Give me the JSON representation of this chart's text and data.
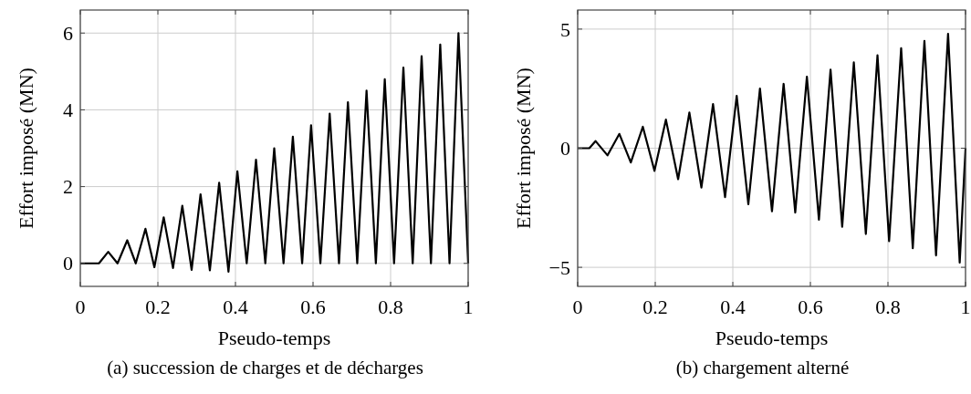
{
  "chart_data": [
    {
      "type": "line",
      "xlabel": "Pseudo-temps",
      "ylabel": "Effort imposé (MN)",
      "annotations": [
        "(a) succession de charges et de décharges"
      ],
      "xlim": [
        0,
        1
      ],
      "ylim": [
        -0.6,
        6.6
      ],
      "xticks": [
        0,
        0.2,
        0.4,
        0.6,
        0.8,
        1
      ],
      "yticks": [
        0,
        2,
        4,
        6
      ],
      "grid": true,
      "marker": "none",
      "line_style": "solid",
      "series": [
        {
          "color": "#000000",
          "x": [
            0,
            0.048,
            0.072,
            0.096,
            0.121,
            0.143,
            0.168,
            0.191,
            0.215,
            0.239,
            0.263,
            0.287,
            0.31,
            0.334,
            0.358,
            0.382,
            0.405,
            0.429,
            0.453,
            0.477,
            0.5,
            0.524,
            0.548,
            0.572,
            0.595,
            0.619,
            0.643,
            0.667,
            0.69,
            0.714,
            0.738,
            0.762,
            0.785,
            0.809,
            0.833,
            0.857,
            0.88,
            0.904,
            0.928,
            0.952,
            0.975,
            1
          ],
          "values": [
            0,
            0,
            0.3,
            0,
            0.6,
            0,
            0.9,
            -0.1,
            1.2,
            -0.12,
            1.5,
            -0.17,
            1.8,
            -0.18,
            2.1,
            -0.22,
            2.4,
            0,
            2.7,
            0,
            3,
            0,
            3.3,
            0,
            3.6,
            0,
            3.9,
            0,
            4.2,
            0,
            4.5,
            0,
            4.8,
            0,
            5.1,
            0,
            5.4,
            0,
            5.7,
            0,
            6,
            0
          ]
        }
      ]
    },
    {
      "type": "line",
      "xlabel": "Pseudo-temps",
      "ylabel": "Effort imposé (MN)",
      "annotations": [
        "(b) chargement alterné"
      ],
      "xlim": [
        0,
        1
      ],
      "ylim": [
        -5.8,
        5.8
      ],
      "xticks": [
        0,
        0.2,
        0.4,
        0.6,
        0.8,
        1
      ],
      "yticks": [
        {
          "value": -5,
          "label": "−5"
        },
        0,
        5
      ],
      "grid": true,
      "marker": "none",
      "line_style": "solid",
      "series": [
        {
          "color": "#000000",
          "x": [
            0,
            0.03,
            0.046,
            0.077,
            0.1075,
            0.137,
            0.168,
            0.198,
            0.2275,
            0.259,
            0.288,
            0.319,
            0.349,
            0.38,
            0.41,
            0.44,
            0.47,
            0.501,
            0.531,
            0.561,
            0.591,
            0.622,
            0.652,
            0.682,
            0.712,
            0.743,
            0.773,
            0.803,
            0.834,
            0.864,
            0.894,
            0.924,
            0.955,
            0.985,
            1
          ],
          "values": [
            0,
            0,
            0.3,
            -0.3,
            0.6,
            -0.6,
            0.9,
            -0.95,
            1.2,
            -1.3,
            1.5,
            -1.65,
            1.85,
            -2.05,
            2.2,
            -2.35,
            2.5,
            -2.65,
            2.7,
            -2.7,
            3,
            -3,
            3.3,
            -3.3,
            3.6,
            -3.6,
            3.9,
            -3.9,
            4.2,
            -4.2,
            4.5,
            -4.5,
            4.8,
            -4.8,
            0
          ]
        }
      ]
    }
  ]
}
